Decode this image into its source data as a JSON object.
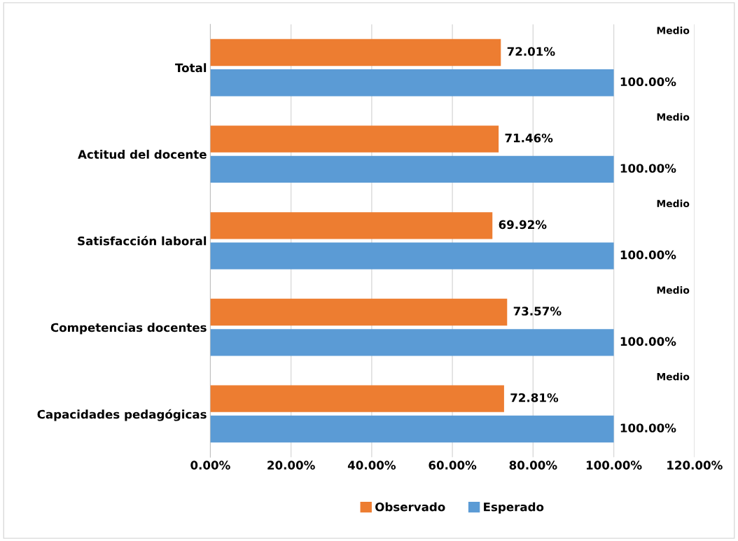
{
  "chart_data": {
    "type": "bar",
    "orientation": "horizontal",
    "categories": [
      "Total",
      "Actitud del docente",
      "Satisfacción laboral",
      "Competencias docentes",
      "Capacidades pedagógicas"
    ],
    "series": [
      {
        "name": "Observado",
        "color": "#ed7d31",
        "values": [
          72.01,
          71.46,
          69.92,
          73.57,
          72.81
        ],
        "value_labels": [
          "72.01%",
          "71.46%",
          "69.92%",
          "73.57%",
          "72.81%"
        ]
      },
      {
        "name": "Esperado",
        "color": "#5b9bd5",
        "values": [
          100,
          100,
          100,
          100,
          100
        ],
        "value_labels": [
          "100.00%",
          "100.00%",
          "100.00%",
          "100.00%",
          "100.00%"
        ]
      }
    ],
    "xlim": [
      0,
      120
    ],
    "xticks": [
      {
        "value": 0,
        "label": "0.00%"
      },
      {
        "value": 20,
        "label": "20.00%"
      },
      {
        "value": 40,
        "label": "40.00%"
      },
      {
        "value": 60,
        "label": "60.00%"
      },
      {
        "value": 80,
        "label": "80.00%"
      },
      {
        "value": 100,
        "label": "100.00%"
      },
      {
        "value": 120,
        "label": "120.00%"
      }
    ],
    "annotations": [
      "Medio",
      "Medio",
      "Medio",
      "Medio",
      "Medio"
    ],
    "grid": "x",
    "legend": "bottom"
  }
}
